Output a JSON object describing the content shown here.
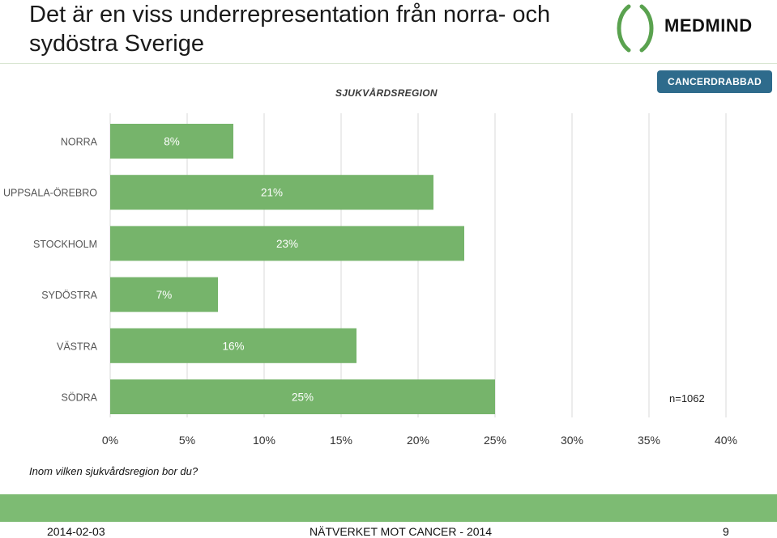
{
  "slide": {
    "title": "Det är en viss underrepresentation från norra- och sydöstra Sverige",
    "logo_text": "MEDMIND",
    "region_header": "SJUKVÅRDSREGION",
    "legend_label": "CANCERDRABBAD",
    "n_label": "n=1062",
    "question": "Inom vilken sjukvårdsregion bor du?",
    "footer": {
      "date": "2014-02-03",
      "center": "NÄTVERKET MOT CANCER - 2014",
      "page": "9"
    }
  },
  "colors": {
    "bar": "#76b46b",
    "grid": "#d9d9d9",
    "legend_bg": "#2e6b8c",
    "footer_band": "#7dbb73"
  },
  "chart_data": {
    "type": "bar",
    "orientation": "horizontal",
    "categories": [
      "NORRA",
      "UPPSALA-ÖREBRO",
      "STOCKHOLM",
      "SYDÖSTRA",
      "VÄSTRA",
      "SÖDRA"
    ],
    "series": [
      {
        "name": "CANCERDRABBAD",
        "values": [
          8,
          21,
          23,
          7,
          16,
          25
        ],
        "labels": [
          "8%",
          "21%",
          "23%",
          "7%",
          "16%",
          "25%"
        ]
      }
    ],
    "xlim": [
      0,
      40
    ],
    "xticks": [
      "0%",
      "5%",
      "10%",
      "15%",
      "20%",
      "25%",
      "30%",
      "35%",
      "40%"
    ],
    "grid": true,
    "legend": "top-right"
  }
}
